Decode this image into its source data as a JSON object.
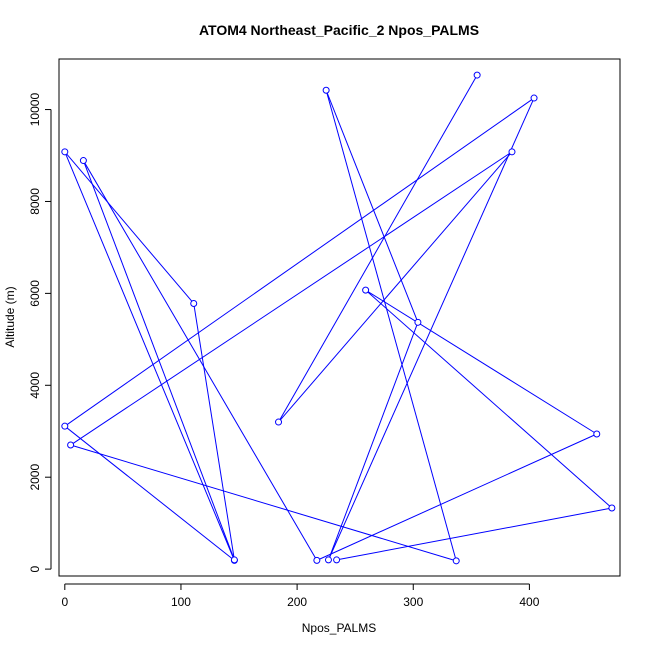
{
  "chart_data": {
    "type": "line",
    "title": "ATOM4 Northeast_Pacific_2 Npos_PALMS",
    "xlabel": "Npos_PALMS",
    "ylabel": "Altitude (m)",
    "xlim": [
      -5,
      478
    ],
    "ylim": [
      -150,
      11100
    ],
    "x_ticks": [
      0,
      100,
      200,
      300,
      400
    ],
    "y_ticks": [
      0,
      2000,
      4000,
      6000,
      8000,
      10000
    ],
    "series_color": "#0000ff",
    "points": [
      {
        "x": 355,
        "y": 10750
      },
      {
        "x": 184,
        "y": 3200
      },
      {
        "x": 385,
        "y": 9080
      },
      {
        "x": 5,
        "y": 2700
      },
      {
        "x": 337,
        "y": 180
      },
      {
        "x": 225,
        "y": 10420
      },
      {
        "x": 304,
        "y": 5370
      },
      {
        "x": 227,
        "y": 200
      },
      {
        "x": 404,
        "y": 10250
      },
      {
        "x": 0,
        "y": 3110
      },
      {
        "x": 146,
        "y": 190
      },
      {
        "x": 0,
        "y": 9080
      },
      {
        "x": 111,
        "y": 5780
      },
      {
        "x": 146,
        "y": 200
      },
      {
        "x": 16,
        "y": 8890
      },
      {
        "x": 217,
        "y": 190
      },
      {
        "x": 458,
        "y": 2940
      },
      {
        "x": 259,
        "y": 6070
      },
      {
        "x": 471,
        "y": 1330
      },
      {
        "x": 234,
        "y": 200
      }
    ]
  }
}
